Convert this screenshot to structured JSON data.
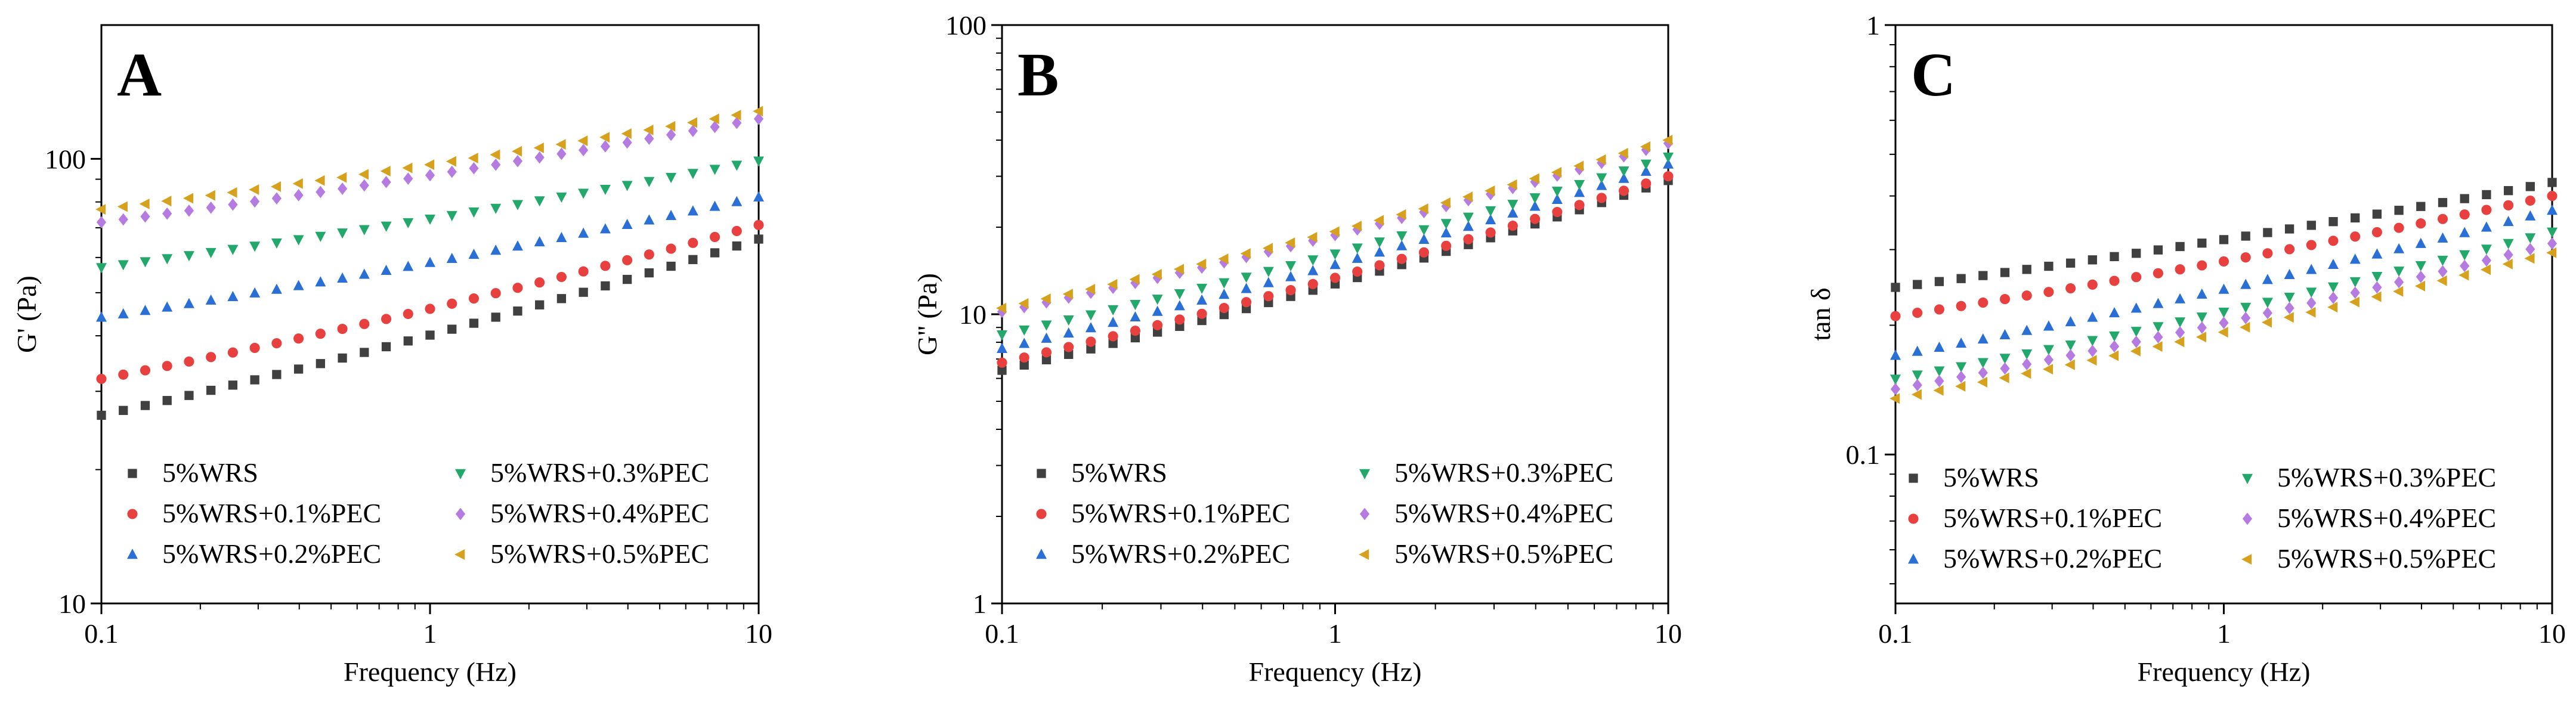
{
  "colors": {
    "5%WRS": "#404040",
    "5%WRS+0.1%PEC": "#e8403e",
    "5%WRS+0.2%PEC": "#2a6fd6",
    "5%WRS+0.3%PEC": "#22a86a",
    "5%WRS+0.4%PEC": "#b57be0",
    "5%WRS+0.5%PEC": "#d6a21e"
  },
  "markers": {
    "5%WRS": "square",
    "5%WRS+0.1%PEC": "circle",
    "5%WRS+0.2%PEC": "triangle-up",
    "5%WRS+0.3%PEC": "triangle-down",
    "5%WRS+0.4%PEC": "diamond",
    "5%WRS+0.5%PEC": "triangle-left"
  },
  "chart_data": [
    {
      "type": "scatter",
      "panel_label": "A",
      "xlabel": "Frequency (Hz)",
      "ylabel": "G' (Pa)",
      "xscale": "log",
      "yscale": "log",
      "xlim": [
        0.1,
        10
      ],
      "ylim": [
        10,
        200
      ],
      "xticks": [
        "0.1",
        "1",
        "10"
      ],
      "yticks": [
        "10",
        "100"
      ],
      "legend_position": "bottom",
      "series": [
        {
          "name": "5%WRS",
          "y_start": 26.5,
          "y_end": 66
        },
        {
          "name": "5%WRS+0.1%PEC",
          "y_start": 32,
          "y_end": 71
        },
        {
          "name": "5%WRS+0.2%PEC",
          "y_start": 44,
          "y_end": 82
        },
        {
          "name": "5%WRS+0.3%PEC",
          "y_start": 57,
          "y_end": 99
        },
        {
          "name": "5%WRS+0.4%PEC",
          "y_start": 72,
          "y_end": 123
        },
        {
          "name": "5%WRS+0.5%PEC",
          "y_start": 77,
          "y_end": 128
        }
      ]
    },
    {
      "type": "scatter",
      "panel_label": "B",
      "xlabel": "Frequency (Hz)",
      "ylabel": "G'' (Pa)",
      "xscale": "log",
      "yscale": "log",
      "xlim": [
        0.1,
        10
      ],
      "ylim": [
        1,
        100
      ],
      "xticks": [
        "0.1",
        "1",
        "10"
      ],
      "yticks": [
        "1",
        "10",
        "100"
      ],
      "legend_position": "bottom-right",
      "series": [
        {
          "name": "5%WRS",
          "y_start": 6.4,
          "y_end": 29
        },
        {
          "name": "5%WRS+0.1%PEC",
          "y_start": 6.8,
          "y_end": 30
        },
        {
          "name": "5%WRS+0.2%PEC",
          "y_start": 7.6,
          "y_end": 33
        },
        {
          "name": "5%WRS+0.3%PEC",
          "y_start": 8.5,
          "y_end": 35
        },
        {
          "name": "5%WRS+0.4%PEC",
          "y_start": 10.2,
          "y_end": 39
        },
        {
          "name": "5%WRS+0.5%PEC",
          "y_start": 10.5,
          "y_end": 40
        }
      ]
    },
    {
      "type": "scatter",
      "panel_label": "C",
      "xlabel": "Frequency (Hz)",
      "ylabel": "tan δ",
      "xscale": "log",
      "yscale": "log",
      "xlim": [
        0.1,
        10
      ],
      "ylim": [
        0.045,
        1
      ],
      "xticks": [
        "0.1",
        "1",
        "10"
      ],
      "yticks": [
        "0.1",
        "1"
      ],
      "legend_position": "bottom",
      "series": [
        {
          "name": "5%WRS",
          "y_start": 0.245,
          "y_end": 0.43
        },
        {
          "name": "5%WRS+0.1%PEC",
          "y_start": 0.21,
          "y_end": 0.4
        },
        {
          "name": "5%WRS+0.2%PEC",
          "y_start": 0.17,
          "y_end": 0.37
        },
        {
          "name": "5%WRS+0.3%PEC",
          "y_start": 0.15,
          "y_end": 0.33
        },
        {
          "name": "5%WRS+0.4%PEC",
          "y_start": 0.142,
          "y_end": 0.31
        },
        {
          "name": "5%WRS+0.5%PEC",
          "y_start": 0.135,
          "y_end": 0.295
        }
      ]
    }
  ]
}
